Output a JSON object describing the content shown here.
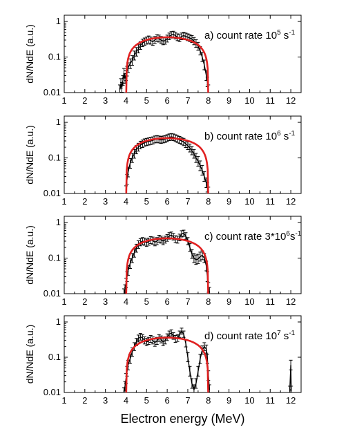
{
  "chart_data": [
    {
      "type": "line",
      "annotation": {
        "text": "a) count rate 10",
        "sup": "5",
        "unit": " s",
        "unit_sup": "-1"
      },
      "ylabel": "dN/NdE (a.u.)",
      "xlim": [
        1,
        12.5
      ],
      "ylim": [
        0.01,
        1.5
      ],
      "yscale": "log",
      "x_ticks": [
        1,
        2,
        3,
        4,
        5,
        6,
        7,
        8,
        9,
        10,
        11,
        12
      ],
      "y_ticks": [
        {
          "value": 0.01,
          "label": "0.01"
        },
        {
          "value": 0.1,
          "label": "0.1"
        },
        {
          "value": 1,
          "label": "1"
        }
      ],
      "grid": false,
      "series": [
        {
          "kind": "data",
          "color": "#000000",
          "x": [
            3.7,
            3.75,
            3.8,
            3.85,
            3.9,
            3.95,
            4.0,
            4.05,
            4.1,
            4.2,
            4.3,
            4.4,
            4.5,
            4.6,
            4.7,
            4.8,
            4.9,
            5.0,
            5.1,
            5.2,
            5.3,
            5.4,
            5.5,
            5.6,
            5.7,
            5.8,
            5.9,
            6.0,
            6.1,
            6.2,
            6.3,
            6.4,
            6.5,
            6.6,
            6.7,
            6.8,
            6.9,
            7.0,
            7.1,
            7.2,
            7.3,
            7.4,
            7.5,
            7.6,
            7.7,
            7.8,
            7.9,
            7.95,
            8.0
          ],
          "y": [
            0.012,
            0.018,
            0.014,
            0.022,
            0.035,
            0.025,
            0.03,
            0.04,
            0.05,
            0.065,
            0.08,
            0.11,
            0.14,
            0.17,
            0.21,
            0.25,
            0.27,
            0.29,
            0.31,
            0.29,
            0.27,
            0.3,
            0.34,
            0.33,
            0.3,
            0.28,
            0.29,
            0.33,
            0.38,
            0.42,
            0.43,
            0.4,
            0.36,
            0.34,
            0.38,
            0.4,
            0.38,
            0.36,
            0.34,
            0.32,
            0.28,
            0.24,
            0.2,
            0.15,
            0.1,
            0.06,
            0.03,
            0.02,
            0.012
          ]
        },
        {
          "kind": "fit",
          "color": "#e02020",
          "x_start": 4.0,
          "x_end": 8.0,
          "peak": 0.36
        }
      ]
    },
    {
      "type": "line",
      "annotation": {
        "text": "b) count rate 10",
        "sup": "6",
        "unit": " s",
        "unit_sup": "-1"
      },
      "ylabel": "dN/NdE (a.u.)",
      "xlim": [
        1,
        12.5
      ],
      "ylim": [
        0.01,
        1.5
      ],
      "yscale": "log",
      "x_ticks": [
        1,
        2,
        3,
        4,
        5,
        6,
        7,
        8,
        9,
        10,
        11,
        12
      ],
      "y_ticks": [
        {
          "value": 0.01,
          "label": "0.01"
        },
        {
          "value": 0.1,
          "label": "0.1"
        },
        {
          "value": 1,
          "label": "1"
        }
      ],
      "grid": false,
      "series": [
        {
          "kind": "data",
          "color": "#000000",
          "x": [
            4.0,
            4.05,
            4.1,
            4.2,
            4.3,
            4.4,
            4.5,
            4.6,
            4.7,
            4.8,
            4.9,
            5.0,
            5.1,
            5.2,
            5.3,
            5.4,
            5.5,
            5.6,
            5.7,
            5.8,
            5.9,
            6.0,
            6.1,
            6.2,
            6.3,
            6.4,
            6.5,
            6.6,
            6.7,
            6.8,
            6.9,
            7.0,
            7.1,
            7.2,
            7.3,
            7.4,
            7.5,
            7.6,
            7.7,
            7.8,
            7.9,
            7.95,
            8.0
          ],
          "y": [
            0.012,
            0.025,
            0.04,
            0.07,
            0.1,
            0.13,
            0.17,
            0.2,
            0.23,
            0.25,
            0.27,
            0.28,
            0.29,
            0.3,
            0.31,
            0.33,
            0.34,
            0.33,
            0.32,
            0.33,
            0.34,
            0.36,
            0.38,
            0.39,
            0.38,
            0.36,
            0.34,
            0.32,
            0.3,
            0.28,
            0.25,
            0.22,
            0.19,
            0.16,
            0.13,
            0.1,
            0.08,
            0.06,
            0.045,
            0.03,
            0.02,
            0.015,
            0.011
          ]
        },
        {
          "kind": "fit",
          "color": "#e02020",
          "x_start": 4.0,
          "x_end": 8.0,
          "peak": 0.36
        }
      ]
    },
    {
      "type": "line",
      "annotation": {
        "text": "c) count rate 3*10",
        "sup": "6",
        "unit": "s",
        "unit_sup": "-1"
      },
      "ylabel": "dN/NdE (a.u.)",
      "xlim": [
        1,
        12.5
      ],
      "ylim": [
        0.01,
        1.5
      ],
      "yscale": "log",
      "x_ticks": [
        1,
        2,
        3,
        4,
        5,
        6,
        7,
        8,
        9,
        10,
        11,
        12
      ],
      "y_ticks": [
        {
          "value": 0.01,
          "label": "0.01"
        },
        {
          "value": 0.1,
          "label": "0.1"
        },
        {
          "value": 1,
          "label": "1"
        }
      ],
      "grid": false,
      "series": [
        {
          "kind": "data",
          "color": "#000000",
          "x": [
            3.9,
            3.95,
            4.0,
            4.05,
            4.1,
            4.2,
            4.3,
            4.4,
            4.5,
            4.6,
            4.7,
            4.8,
            4.9,
            5.0,
            5.1,
            5.2,
            5.3,
            5.4,
            5.5,
            5.6,
            5.7,
            5.8,
            5.9,
            6.0,
            6.1,
            6.2,
            6.3,
            6.4,
            6.5,
            6.6,
            6.7,
            6.8,
            6.9,
            7.0,
            7.1,
            7.2,
            7.3,
            7.4,
            7.5,
            7.6,
            7.7,
            7.8,
            7.9,
            7.95,
            8.0,
            8.05
          ],
          "y": [
            0.01,
            0.013,
            0.02,
            0.03,
            0.045,
            0.07,
            0.1,
            0.14,
            0.19,
            0.24,
            0.28,
            0.3,
            0.29,
            0.27,
            0.29,
            0.32,
            0.31,
            0.28,
            0.3,
            0.35,
            0.33,
            0.3,
            0.33,
            0.37,
            0.42,
            0.44,
            0.4,
            0.34,
            0.33,
            0.38,
            0.48,
            0.5,
            0.42,
            0.3,
            0.2,
            0.13,
            0.1,
            0.09,
            0.095,
            0.11,
            0.12,
            0.1,
            0.06,
            0.03,
            0.015,
            0.011
          ]
        },
        {
          "kind": "fit",
          "color": "#e02020",
          "x_start": 4.0,
          "x_end": 8.0,
          "peak": 0.36
        }
      ]
    },
    {
      "type": "line",
      "annotation": {
        "text": "d) count rate 10",
        "sup": "7",
        "unit": " s",
        "unit_sup": "-1"
      },
      "ylabel": "dN/NdE (a.u.)",
      "xlabel": "Electron energy (MeV)",
      "xlim": [
        1,
        12.5
      ],
      "ylim": [
        0.01,
        1.5
      ],
      "yscale": "log",
      "x_ticks": [
        1,
        2,
        3,
        4,
        5,
        6,
        7,
        8,
        9,
        10,
        11,
        12
      ],
      "y_ticks": [
        {
          "value": 0.01,
          "label": "0.01"
        },
        {
          "value": 0.1,
          "label": "0.1"
        },
        {
          "value": 1,
          "label": "1"
        }
      ],
      "grid": false,
      "series": [
        {
          "kind": "data",
          "color": "#000000",
          "x": [
            3.9,
            3.95,
            4.0,
            4.05,
            4.1,
            4.2,
            4.3,
            4.4,
            4.5,
            4.6,
            4.7,
            4.8,
            4.9,
            5.0,
            5.1,
            5.2,
            5.3,
            5.4,
            5.5,
            5.6,
            5.7,
            5.8,
            5.9,
            6.0,
            6.1,
            6.2,
            6.3,
            6.4,
            6.5,
            6.6,
            6.7,
            6.8,
            6.9,
            7.0,
            7.1,
            7.2,
            7.3,
            7.4,
            7.5,
            7.6,
            7.7,
            7.8,
            7.9,
            7.95,
            8.0,
            8.05
          ],
          "y": [
            0.01,
            0.015,
            0.025,
            0.04,
            0.06,
            0.09,
            0.14,
            0.2,
            0.27,
            0.34,
            0.38,
            0.35,
            0.3,
            0.27,
            0.29,
            0.33,
            0.3,
            0.26,
            0.29,
            0.35,
            0.32,
            0.27,
            0.3,
            0.37,
            0.45,
            0.49,
            0.4,
            0.33,
            0.35,
            0.45,
            0.55,
            0.45,
            0.25,
            0.1,
            0.04,
            0.018,
            0.012,
            0.018,
            0.04,
            0.09,
            0.16,
            0.2,
            0.17,
            0.09,
            0.03,
            0.012
          ]
        },
        {
          "kind": "data",
          "color": "#000000",
          "x": [
            11.95,
            12.0,
            12.02
          ],
          "y": [
            0.011,
            0.06,
            0.011
          ]
        },
        {
          "kind": "fit",
          "color": "#e02020",
          "x_start": 4.0,
          "x_end": 8.0,
          "peak": 0.36
        }
      ]
    }
  ]
}
